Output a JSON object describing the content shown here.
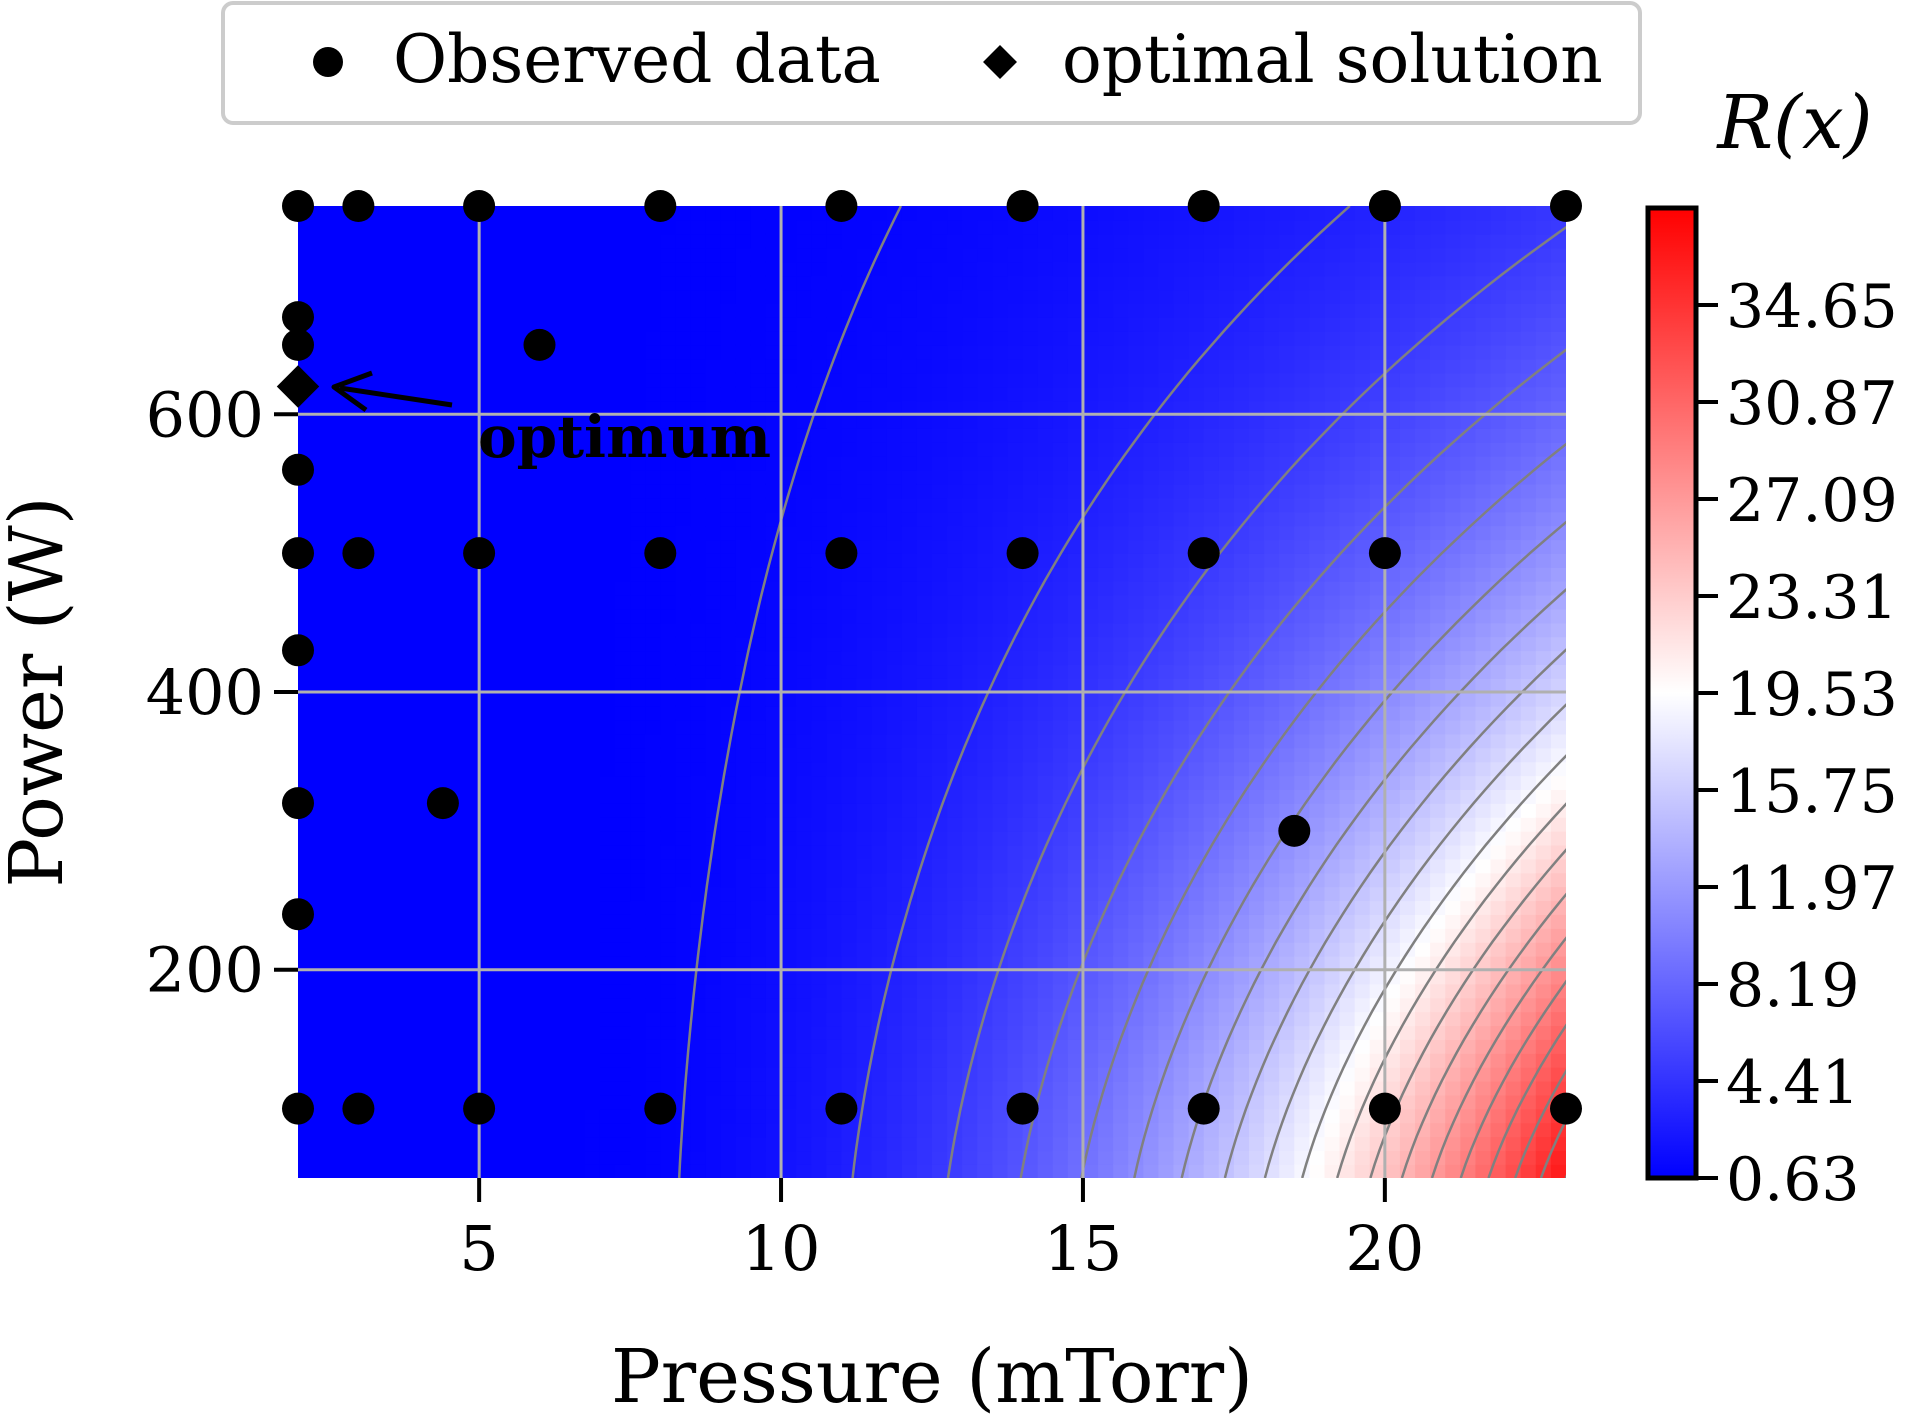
{
  "chart_data": {
    "type": "heatmap",
    "xlabel": "Pressure (mTorr)",
    "ylabel": "Power (W)",
    "xlim": [
      2,
      23
    ],
    "ylim": [
      50,
      750
    ],
    "xticks": [
      5,
      10,
      15,
      20
    ],
    "yticks": [
      200,
      400,
      600
    ],
    "grid": true,
    "legend": {
      "placement": "top",
      "entries": [
        {
          "label": "Observed data",
          "marker": "circle"
        },
        {
          "label": "optimal solution",
          "marker": "diamond"
        }
      ]
    },
    "colorbar": {
      "label": "R(x)",
      "min": 0.63,
      "max": 38.43,
      "ticks": [
        0.63,
        4.41,
        8.19,
        11.97,
        15.75,
        19.53,
        23.31,
        27.09,
        30.87,
        34.65
      ],
      "colormap": [
        "#0000ff",
        "#ffffff",
        "#ff0000"
      ]
    },
    "contour_levels": [
      1,
      3,
      5,
      7,
      9,
      11,
      13,
      15,
      17,
      19,
      21,
      23,
      25,
      27,
      29,
      31,
      33,
      35,
      37
    ],
    "observed_data": [
      {
        "x": 2,
        "y": 750
      },
      {
        "x": 3,
        "y": 750
      },
      {
        "x": 5,
        "y": 750
      },
      {
        "x": 8,
        "y": 750
      },
      {
        "x": 11,
        "y": 750
      },
      {
        "x": 14,
        "y": 750
      },
      {
        "x": 17,
        "y": 750
      },
      {
        "x": 20,
        "y": 750
      },
      {
        "x": 23,
        "y": 750
      },
      {
        "x": 2,
        "y": 670
      },
      {
        "x": 2,
        "y": 650
      },
      {
        "x": 6,
        "y": 650
      },
      {
        "x": 2,
        "y": 560
      },
      {
        "x": 2,
        "y": 500
      },
      {
        "x": 3,
        "y": 500
      },
      {
        "x": 5,
        "y": 500
      },
      {
        "x": 8,
        "y": 500
      },
      {
        "x": 11,
        "y": 500
      },
      {
        "x": 14,
        "y": 500
      },
      {
        "x": 17,
        "y": 500
      },
      {
        "x": 20,
        "y": 500
      },
      {
        "x": 2,
        "y": 430
      },
      {
        "x": 2,
        "y": 320
      },
      {
        "x": 4.4,
        "y": 320
      },
      {
        "x": 18.5,
        "y": 300
      },
      {
        "x": 2,
        "y": 240
      },
      {
        "x": 2,
        "y": 100
      },
      {
        "x": 3,
        "y": 100
      },
      {
        "x": 5,
        "y": 100
      },
      {
        "x": 8,
        "y": 100
      },
      {
        "x": 11,
        "y": 100
      },
      {
        "x": 14,
        "y": 100
      },
      {
        "x": 17,
        "y": 100
      },
      {
        "x": 20,
        "y": 100
      },
      {
        "x": 23,
        "y": 100
      }
    ],
    "optimal_solution": {
      "x": 2,
      "y": 620
    },
    "annotation": {
      "text": "optimum",
      "x": 5,
      "y": 570,
      "points_to": {
        "x": 2,
        "y": 620
      }
    }
  }
}
